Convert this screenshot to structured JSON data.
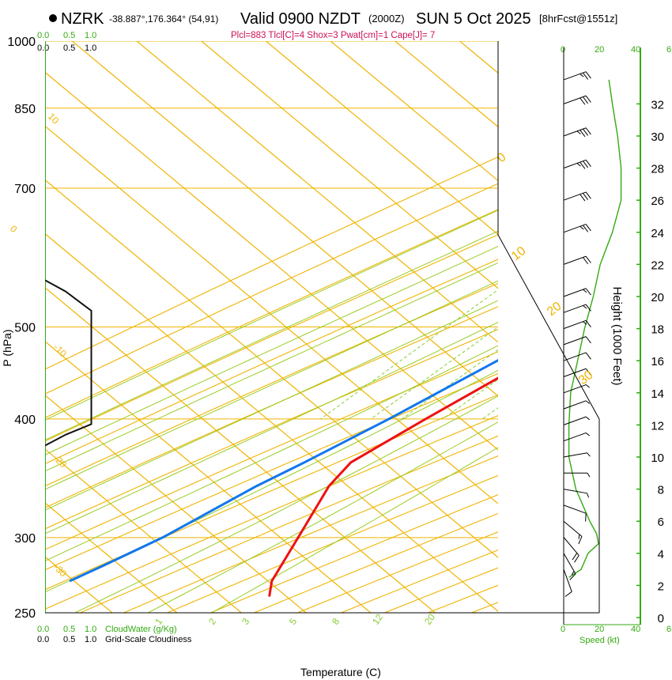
{
  "header": {
    "station": "NZRK",
    "location": "-38.887°,176.364° (54,91)",
    "valid": "Valid 0900 NZDT",
    "utc": "(2000Z)",
    "date": "SUN 5 Oct 2025",
    "forecast": "[8hrFcst@1551z]",
    "indices": "Plcl=883 Tlcl[C]=4 Shox=3 Pwat[cm]=1 Cape[J]= 7"
  },
  "colors": {
    "temperature": "#ee1111",
    "dewpoint": "#1177ee",
    "isotherm": "#f0b400",
    "dry_adiabat": "#f0b400",
    "moist_adiabat": "#99cc22",
    "mixing_ratio": "#88cc33",
    "cloud": "#111111",
    "green_label": "#33aa11",
    "indices_text": "#cc1155"
  },
  "chart_data": {
    "type": "skew-t",
    "title": "NZRK Skew-T sounding",
    "xlabel": "Temperature (C)",
    "ylabel": "P (hPa)",
    "y2label": "Height (1000 Feet)",
    "xlim": [
      -35,
      45
    ],
    "ylim": [
      1000,
      250
    ],
    "x_ticks": [
      -30,
      -20,
      -10,
      0,
      10,
      20,
      30,
      40
    ],
    "pressure_ticks": [
      250,
      300,
      400,
      500,
      700,
      850,
      1000
    ],
    "height_ticks_kft": [
      0,
      2,
      4,
      6,
      8,
      10,
      12,
      14,
      16,
      18,
      20,
      22,
      24,
      26,
      28,
      30,
      32
    ],
    "isotherm_labels": [
      "10",
      "0",
      "-10",
      "-20",
      "-30"
    ],
    "right_isotherm_labels": [
      "0",
      "10",
      "20",
      "30"
    ],
    "mixing_ratio_labels": [
      "1",
      "2",
      "3",
      "5",
      "8",
      "12",
      "20"
    ],
    "temperature_profile": [
      {
        "p": 925,
        "t": 11.8
      },
      {
        "p": 915,
        "t": 10.8
      },
      {
        "p": 900,
        "t": 10.2
      },
      {
        "p": 880,
        "t": 9.6
      },
      {
        "p": 860,
        "t": 9.0
      },
      {
        "p": 840,
        "t": 8.8
      },
      {
        "p": 820,
        "t": 9.4
      },
      {
        "p": 800,
        "t": 9.6
      },
      {
        "p": 760,
        "t": 9.6
      },
      {
        "p": 700,
        "t": 7.6
      },
      {
        "p": 650,
        "t": 5.0
      },
      {
        "p": 600,
        "t": 2.5
      },
      {
        "p": 550,
        "t": -0.2
      },
      {
        "p": 500,
        "t": -3.0
      },
      {
        "p": 450,
        "t": -7.0
      },
      {
        "p": 400,
        "t": -11.3
      },
      {
        "p": 360,
        "t": -14.8
      },
      {
        "p": 340,
        "t": -13.8
      },
      {
        "p": 300,
        "t": -9.0
      },
      {
        "p": 270,
        "t": -5.0
      },
      {
        "p": 260,
        "t": -2.5
      }
    ],
    "dewpoint_profile": [
      {
        "p": 920,
        "t": 9.3
      },
      {
        "p": 905,
        "t": 8.5
      },
      {
        "p": 890,
        "t": 7.8
      },
      {
        "p": 870,
        "t": 7.2
      },
      {
        "p": 850,
        "t": 7.0
      },
      {
        "p": 830,
        "t": 6.5
      },
      {
        "p": 815,
        "t": 4.5
      },
      {
        "p": 800,
        "t": 3.5
      },
      {
        "p": 760,
        "t": 2.0
      },
      {
        "p": 700,
        "t": -0.4
      },
      {
        "p": 650,
        "t": -2.4
      },
      {
        "p": 600,
        "t": -3.7
      },
      {
        "p": 560,
        "t": -4.2
      },
      {
        "p": 530,
        "t": -5.2
      },
      {
        "p": 500,
        "t": -7.5
      },
      {
        "p": 450,
        "t": -12.0
      },
      {
        "p": 400,
        "t": -17.0
      },
      {
        "p": 360,
        "t": -22.0
      },
      {
        "p": 340,
        "t": -25.0
      },
      {
        "p": 300,
        "t": -30.0
      },
      {
        "p": 280,
        "t": -34.0
      },
      {
        "p": 270,
        "t": -36.3
      }
    ],
    "cloud_fraction_profile": [
      {
        "p": 560,
        "f": 0.0
      },
      {
        "p": 545,
        "f": 0.2
      },
      {
        "p": 520,
        "f": 0.45
      },
      {
        "p": 500,
        "f": 0.45
      },
      {
        "p": 400,
        "f": 0.45
      },
      {
        "p": 395,
        "f": 0.45
      },
      {
        "p": 385,
        "f": 0.2
      },
      {
        "p": 375,
        "f": 0.0
      }
    ],
    "wind_speed_profile": [
      {
        "kft": 2.5,
        "kt": 3
      },
      {
        "kft": 3.0,
        "kt": 10
      },
      {
        "kft": 4.0,
        "kt": 14
      },
      {
        "kft": 4.6,
        "kt": 20
      },
      {
        "kft": 5.2,
        "kt": 19
      },
      {
        "kft": 6.0,
        "kt": 15
      },
      {
        "kft": 8.0,
        "kt": 7
      },
      {
        "kft": 10.0,
        "kt": 3
      },
      {
        "kft": 12.0,
        "kt": 3
      },
      {
        "kft": 14.0,
        "kt": 4
      },
      {
        "kft": 16.0,
        "kt": 8
      },
      {
        "kft": 18.0,
        "kt": 12
      },
      {
        "kft": 20.0,
        "kt": 17
      },
      {
        "kft": 22.0,
        "kt": 21
      },
      {
        "kft": 24.0,
        "kt": 28
      },
      {
        "kft": 26.0,
        "kt": 33
      },
      {
        "kft": 28.0,
        "kt": 33
      },
      {
        "kft": 30.0,
        "kt": 31
      },
      {
        "kft": 32.0,
        "kt": 28
      },
      {
        "kft": 33.5,
        "kt": 26
      }
    ],
    "wind_barbs": [
      {
        "kft": 3.0,
        "dir": 200,
        "kt": 10
      },
      {
        "kft": 4.0,
        "dir": 210,
        "kt": 15
      },
      {
        "kft": 5.0,
        "dir": 220,
        "kt": 20
      },
      {
        "kft": 6.0,
        "dir": 230,
        "kt": 15
      },
      {
        "kft": 7.0,
        "dir": 250,
        "kt": 10
      },
      {
        "kft": 8.0,
        "dir": 260,
        "kt": 5
      },
      {
        "kft": 9.0,
        "dir": 270,
        "kt": 5
      },
      {
        "kft": 10.0,
        "dir": 280,
        "kt": 5
      },
      {
        "kft": 11.0,
        "dir": 290,
        "kt": 5
      },
      {
        "kft": 12.0,
        "dir": 290,
        "kt": 5
      },
      {
        "kft": 13.0,
        "dir": 290,
        "kt": 5
      },
      {
        "kft": 14.0,
        "dir": 290,
        "kt": 5
      },
      {
        "kft": 15.0,
        "dir": 290,
        "kt": 10
      },
      {
        "kft": 16.0,
        "dir": 290,
        "kt": 10
      },
      {
        "kft": 17.0,
        "dir": 290,
        "kt": 10
      },
      {
        "kft": 18.0,
        "dir": 290,
        "kt": 15
      },
      {
        "kft": 19.0,
        "dir": 290,
        "kt": 15
      },
      {
        "kft": 20.0,
        "dir": 290,
        "kt": 15
      },
      {
        "kft": 22.0,
        "dir": 290,
        "kt": 20
      },
      {
        "kft": 24.0,
        "dir": 290,
        "kt": 25
      },
      {
        "kft": 26.0,
        "dir": 290,
        "kt": 30
      },
      {
        "kft": 28.0,
        "dir": 290,
        "kt": 35
      },
      {
        "kft": 30.0,
        "dir": 290,
        "kt": 35
      },
      {
        "kft": 32.0,
        "dir": 290,
        "kt": 30
      },
      {
        "kft": 33.5,
        "dir": 290,
        "kt": 25
      }
    ]
  },
  "bottom": {
    "cloudwater_ticks": [
      "0.0",
      "0.5",
      "1.0"
    ],
    "cloudwater_label": "CloudWater (g/Kg)",
    "cloudiness_ticks": [
      "0.0",
      "0.5",
      "1.0"
    ],
    "cloudiness_label": "Grid-Scale Cloudiness",
    "speed_ticks": [
      "0",
      "20",
      "40",
      "6"
    ],
    "speed_label": "Speed (kt)"
  },
  "top": {
    "cloudwater_ticks": [
      "0.0",
      "0.5",
      "1.0"
    ],
    "cloudiness_ticks": [
      "0.0",
      "0.5",
      "1.0"
    ],
    "speed_ticks": [
      "0",
      "20",
      "40",
      "6"
    ]
  }
}
